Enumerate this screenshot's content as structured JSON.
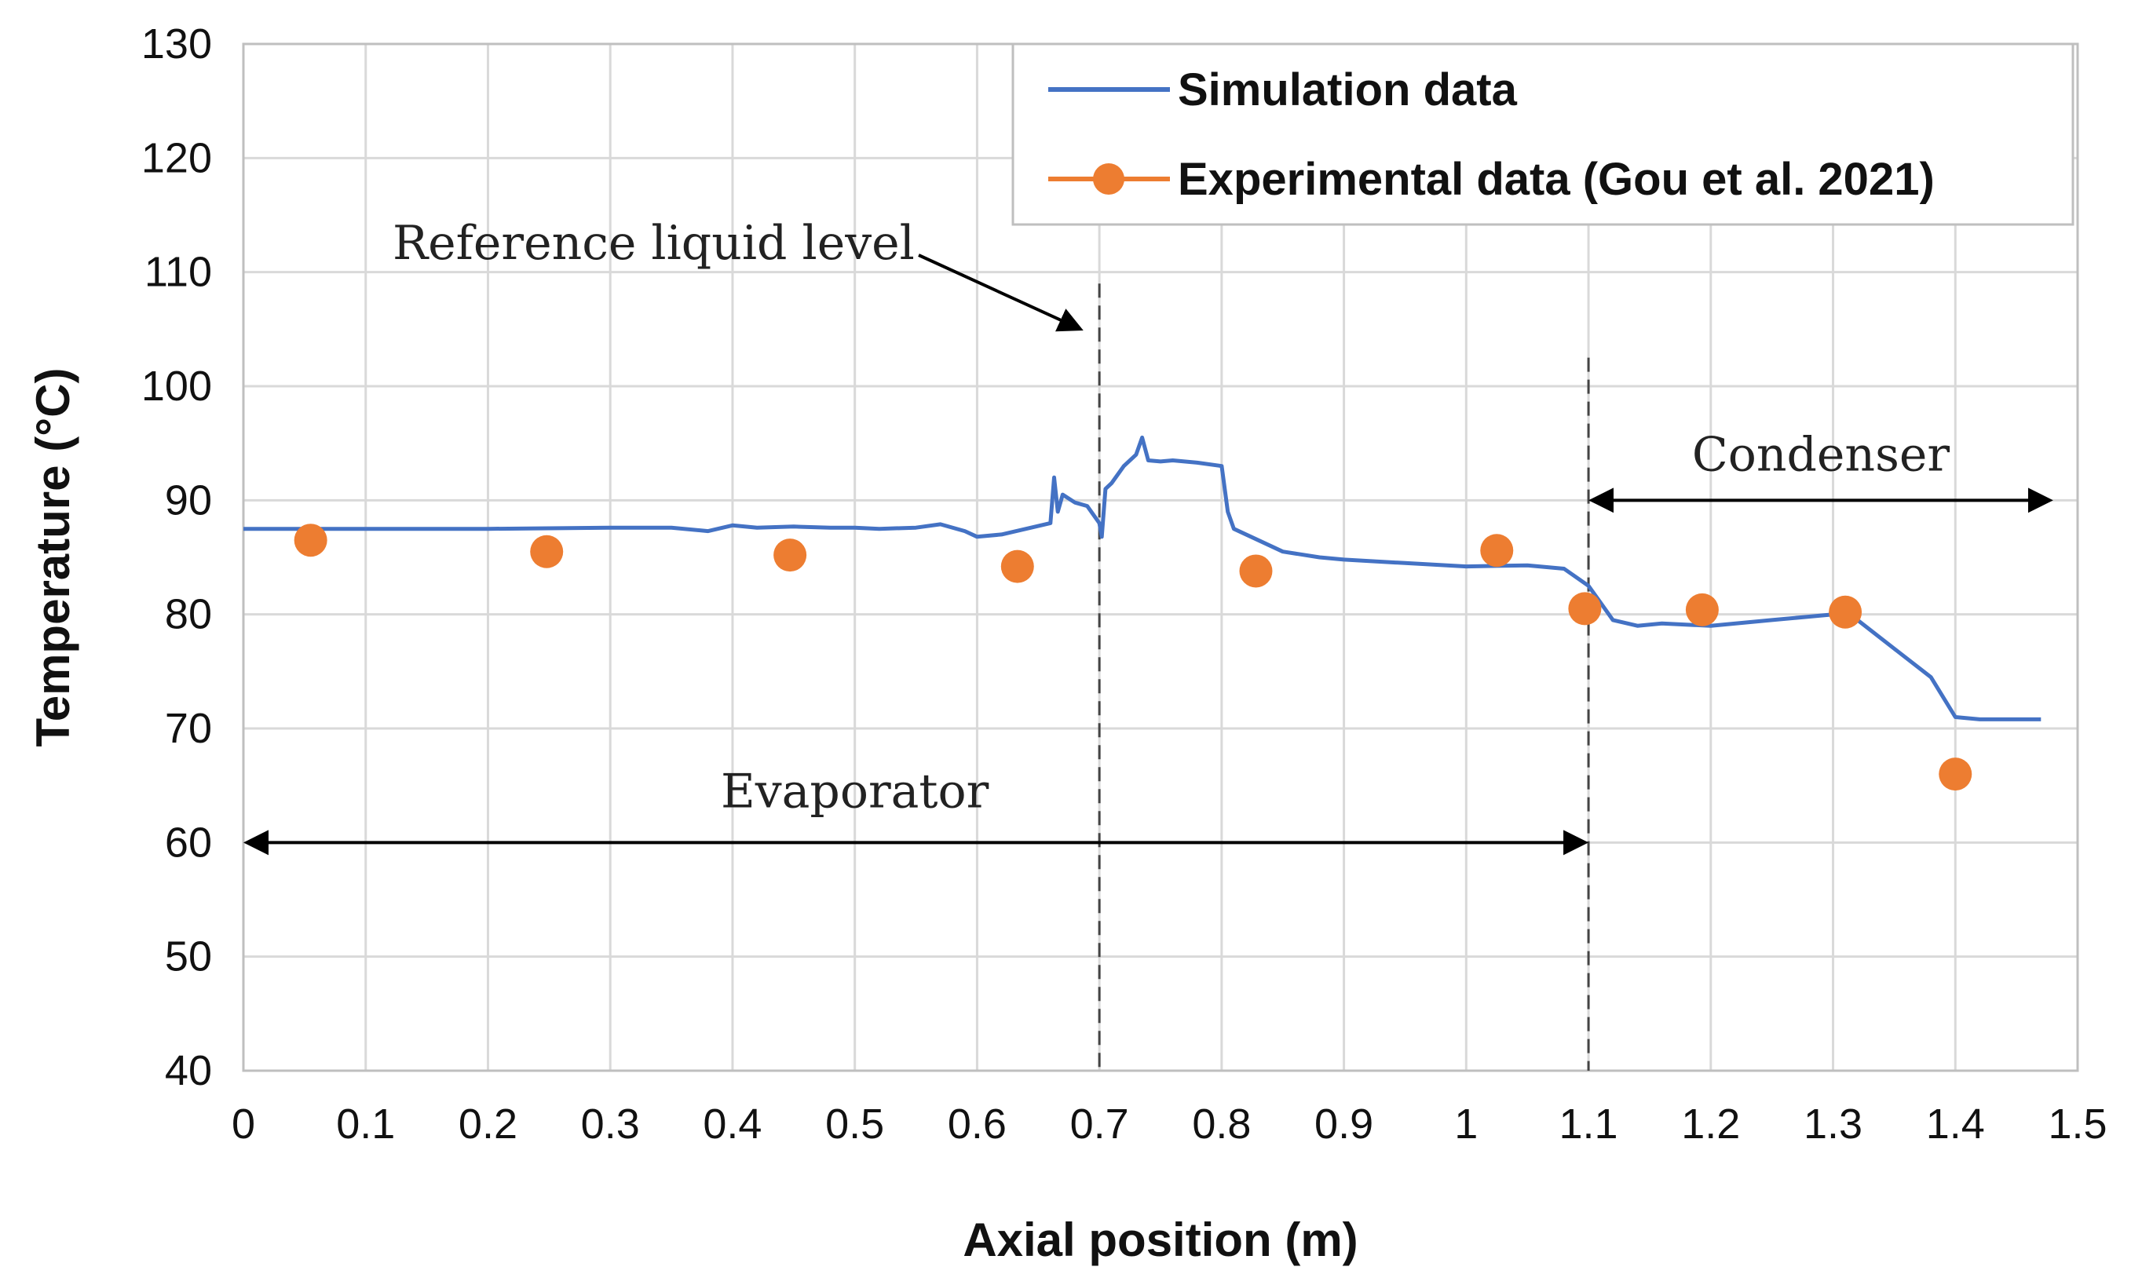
{
  "chart_data": {
    "type": "line",
    "title": "",
    "xlabel": "Axial position (m)",
    "ylabel": "Temperature (°C)",
    "xlim": [
      0,
      1.5
    ],
    "ylim": [
      40,
      130
    ],
    "xticks": [
      "0",
      "0.1",
      "0.2",
      "0.3",
      "0.4",
      "0.5",
      "0.6",
      "0.7",
      "0.8",
      "0.9",
      "1",
      "1.1",
      "1.2",
      "1.3",
      "1.4",
      "1.5"
    ],
    "yticks": [
      "40",
      "50",
      "60",
      "70",
      "80",
      "90",
      "100",
      "110",
      "120",
      "130"
    ],
    "grid": true,
    "legend_position": "top-right",
    "series": [
      {
        "name": "Simulation data",
        "kind": "line",
        "color": "#4472C4",
        "x": [
          0,
          0.02,
          0.1,
          0.2,
          0.3,
          0.35,
          0.38,
          0.4,
          0.42,
          0.45,
          0.48,
          0.5,
          0.52,
          0.55,
          0.57,
          0.59,
          0.6,
          0.62,
          0.64,
          0.66,
          0.663,
          0.666,
          0.67,
          0.68,
          0.69,
          0.7,
          0.702,
          0.705,
          0.71,
          0.72,
          0.73,
          0.735,
          0.74,
          0.75,
          0.76,
          0.78,
          0.8,
          0.805,
          0.81,
          0.83,
          0.85,
          0.88,
          0.9,
          0.95,
          1.0,
          1.05,
          1.08,
          1.1,
          1.12,
          1.14,
          1.16,
          1.2,
          1.25,
          1.3,
          1.32,
          1.35,
          1.38,
          1.4,
          1.42,
          1.47
        ],
        "y": [
          87.5,
          87.5,
          87.5,
          87.5,
          87.6,
          87.6,
          87.3,
          87.8,
          87.6,
          87.7,
          87.6,
          87.6,
          87.5,
          87.6,
          87.9,
          87.3,
          86.8,
          87.0,
          87.5,
          88.0,
          92.0,
          89.0,
          90.5,
          89.8,
          89.5,
          88.0,
          86.8,
          91.0,
          91.5,
          93.0,
          94.0,
          95.5,
          93.5,
          93.4,
          93.5,
          93.3,
          93.0,
          89.0,
          87.5,
          86.5,
          85.5,
          85.0,
          84.8,
          84.5,
          84.2,
          84.3,
          84.0,
          82.5,
          79.5,
          79.0,
          79.2,
          79.0,
          79.5,
          80.0,
          79.5,
          77.0,
          74.5,
          71.0,
          70.8,
          70.8
        ]
      },
      {
        "name": "Experimental data (Gou et al. 2021)",
        "kind": "scatter",
        "color": "#ED7D31",
        "x": [
          0.055,
          0.248,
          0.447,
          0.633,
          0.828,
          1.025,
          1.097,
          1.193,
          1.31,
          1.4
        ],
        "y": [
          86.5,
          85.5,
          85.2,
          84.2,
          83.8,
          85.6,
          80.5,
          80.4,
          80.2,
          66.0
        ]
      }
    ],
    "annotations": {
      "reference_label": "Reference liquid level",
      "reference_x": 0.7,
      "boundary_x": 1.1,
      "evaporator_label": "Evaporator",
      "evaporator_range": [
        0,
        1.1
      ],
      "evaporator_y": 60,
      "condenser_label": "Condenser",
      "condenser_range": [
        1.1,
        1.48
      ],
      "condenser_y": 90
    }
  }
}
